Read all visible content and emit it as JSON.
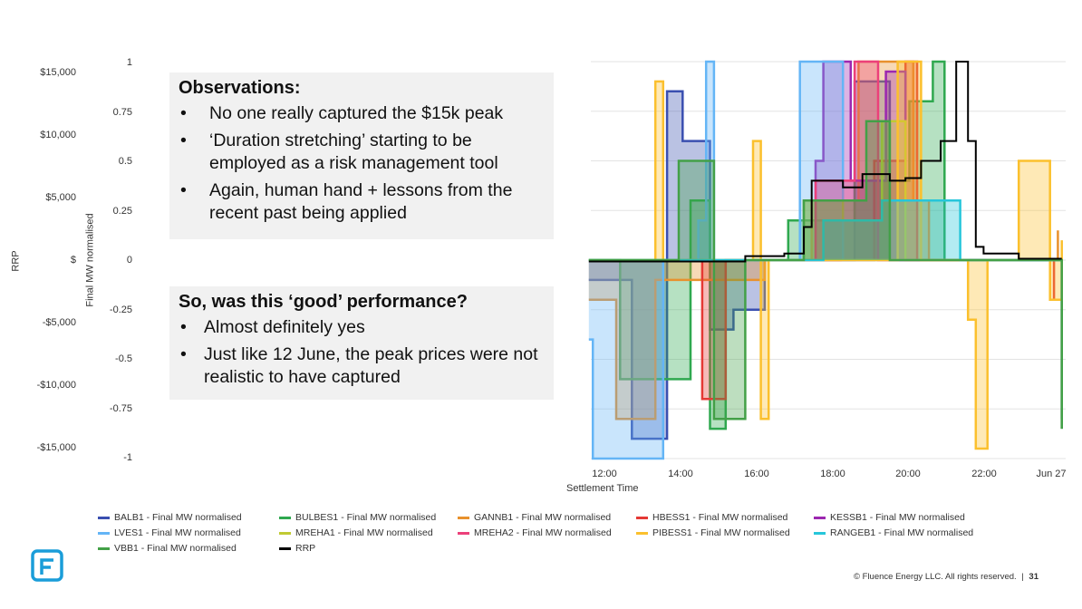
{
  "axes": {
    "rrp_label": "RRP",
    "mw_label": "Final MW normalised",
    "rrp_ticks": [
      "$15,000",
      "$10,000",
      "$5,000",
      "$",
      "-$5,000",
      "-$10,000",
      "-$15,000"
    ],
    "mw_ticks": [
      "1",
      "0.75",
      "0.5",
      "0.25",
      "0",
      "-0.25",
      "-0.5",
      "-0.75",
      "-1"
    ]
  },
  "observations": {
    "heading": "Observations:",
    "bullets": [
      "No one really captured the $15k peak",
      "‘Duration stretching’ starting to be employed as a risk management tool",
      "Again, human hand + lessons from the recent past being applied"
    ]
  },
  "question": {
    "heading": "So, was this ‘good’ performance?",
    "bullets": [
      "Almost definitely yes",
      "Just like 12 June, the peak prices were not realistic to have captured"
    ]
  },
  "chart_data": {
    "type": "line",
    "xlabel": "Settlement Time",
    "x_ticks": [
      "12:00",
      "14:00",
      "16:00",
      "18:00",
      "20:00",
      "22:00",
      "Jun 27"
    ],
    "ylim_left_mw": [
      -1,
      1
    ],
    "ylim_rrp": [
      -15000,
      15000
    ],
    "grid": true,
    "legend_position": "bottom",
    "series": [
      {
        "name": "BALB1 - Final MW normalised",
        "color": "#3a4fb0",
        "points": [
          [
            11.5,
            -0.1
          ],
          [
            12.6,
            -0.9
          ],
          [
            13.5,
            0.85
          ],
          [
            13.9,
            0.6
          ],
          [
            14.6,
            -0.35
          ],
          [
            15.2,
            -0.25
          ],
          [
            16,
            0
          ],
          [
            18.2,
            0
          ],
          [
            18.3,
            0.9
          ],
          [
            19,
            0.9
          ],
          [
            19.2,
            0
          ],
          [
            22,
            0
          ],
          [
            23.6,
            -0.8
          ]
        ]
      },
      {
        "name": "BULBES1 - Final MW normalised",
        "color": "#2fa84f",
        "points": [
          [
            11.5,
            0
          ],
          [
            12.3,
            -0.6
          ],
          [
            14.1,
            0.3
          ],
          [
            14.6,
            -0.85
          ],
          [
            15,
            0
          ],
          [
            16.6,
            0.2
          ],
          [
            17,
            0.2
          ],
          [
            18.3,
            0.4
          ],
          [
            19.7,
            0.8
          ],
          [
            20.3,
            1
          ],
          [
            20.6,
            0
          ],
          [
            22,
            0
          ],
          [
            23.6,
            -0.85
          ]
        ]
      },
      {
        "name": "GANNB1 - Final MW normalised",
        "color": "#e8912d",
        "points": [
          [
            11.5,
            -0.2
          ],
          [
            12.2,
            -0.8
          ],
          [
            13.2,
            -0.1
          ],
          [
            16,
            0
          ],
          [
            17.2,
            0.3
          ],
          [
            18.4,
            1
          ],
          [
            19.5,
            1
          ],
          [
            19.8,
            0.3
          ],
          [
            20.2,
            0
          ],
          [
            22,
            0
          ],
          [
            23.5,
            0.15
          ]
        ]
      },
      {
        "name": "HBESS1 - Final MW normalised",
        "color": "#e53935",
        "points": [
          [
            14,
            0
          ],
          [
            14.4,
            -0.7
          ],
          [
            15,
            0
          ],
          [
            18,
            0
          ],
          [
            18.8,
            0.5
          ],
          [
            19.6,
            1
          ],
          [
            19.9,
            0
          ],
          [
            21,
            0
          ],
          [
            23.4,
            -0.2
          ]
        ]
      },
      {
        "name": "KESSB1 - Final MW normalised",
        "color": "#9c27b0",
        "points": [
          [
            17,
            0
          ],
          [
            17.3,
            0.5
          ],
          [
            17.5,
            1
          ],
          [
            18.1,
            1
          ],
          [
            18.2,
            0.4
          ],
          [
            19.1,
            0.95
          ],
          [
            19.4,
            0.95
          ],
          [
            19.6,
            0
          ],
          [
            21,
            0
          ]
        ]
      },
      {
        "name": "LVES1 - Final MW normalised",
        "color": "#64b5f6",
        "points": [
          [
            11.5,
            -0.4
          ],
          [
            11.6,
            -1
          ],
          [
            13.3,
            -1
          ],
          [
            13.4,
            0
          ],
          [
            14.3,
            0.2
          ],
          [
            14.5,
            1
          ],
          [
            14.6,
            1
          ],
          [
            14.7,
            0
          ],
          [
            16.8,
            0
          ],
          [
            16.9,
            1
          ],
          [
            17.9,
            1
          ],
          [
            18,
            0
          ],
          [
            23.6,
            0
          ]
        ]
      },
      {
        "name": "MREHA1 - Final MW normalised",
        "color": "#c0ca33",
        "points": [
          [
            16,
            0
          ],
          [
            17,
            0.3
          ],
          [
            18,
            0.2
          ],
          [
            19,
            0.7
          ],
          [
            19.6,
            0
          ],
          [
            22,
            0
          ]
        ]
      },
      {
        "name": "MREHA2 - Final MW normalised",
        "color": "#ec407a",
        "points": [
          [
            16,
            0
          ],
          [
            17.3,
            0.4
          ],
          [
            18.3,
            1
          ],
          [
            18.7,
            1
          ],
          [
            18.9,
            0
          ],
          [
            22,
            0
          ]
        ]
      },
      {
        "name": "PIBESS1 - Final MW normalised",
        "color": "#fbc02d",
        "points": [
          [
            11.5,
            0
          ],
          [
            13.2,
            0.9
          ],
          [
            13.4,
            0
          ],
          [
            15.7,
            0.6
          ],
          [
            15.9,
            -0.8
          ],
          [
            16.1,
            0
          ],
          [
            19.4,
            1
          ],
          [
            19.8,
            1
          ],
          [
            20,
            0
          ],
          [
            21.2,
            -0.3
          ],
          [
            21.4,
            -0.95
          ],
          [
            21.7,
            0
          ],
          [
            22.5,
            0.5
          ],
          [
            23.3,
            -0.2
          ],
          [
            23.6,
            0.1
          ]
        ]
      },
      {
        "name": "RANGEB1 - Final MW normalised",
        "color": "#26c6da",
        "points": [
          [
            11.5,
            0
          ],
          [
            16,
            0
          ],
          [
            17.5,
            0.2
          ],
          [
            19,
            0.3
          ],
          [
            20.5,
            0.3
          ],
          [
            21,
            0
          ],
          [
            23.6,
            0
          ]
        ]
      },
      {
        "name": "VBB1 - Final MW normalised",
        "color": "#43a047",
        "points": [
          [
            11.5,
            0
          ],
          [
            13.8,
            0.5
          ],
          [
            14.7,
            -0.8
          ],
          [
            15.5,
            0
          ],
          [
            17,
            0.3
          ],
          [
            18.6,
            0.7
          ],
          [
            19.2,
            0
          ],
          [
            22,
            0
          ],
          [
            23.6,
            -0.85
          ]
        ]
      },
      {
        "name": "RRP",
        "color": "#000000",
        "points": [
          [
            11.5,
            -100
          ],
          [
            14,
            -100
          ],
          [
            15.5,
            300
          ],
          [
            16.5,
            500
          ],
          [
            17,
            2500
          ],
          [
            17.2,
            6000
          ],
          [
            18,
            5500
          ],
          [
            18.5,
            6500
          ],
          [
            19.2,
            6000
          ],
          [
            19.6,
            6200
          ],
          [
            20,
            7500
          ],
          [
            20.5,
            9000
          ],
          [
            20.9,
            15000
          ],
          [
            21.2,
            9000
          ],
          [
            21.4,
            1000
          ],
          [
            21.6,
            500
          ],
          [
            22.5,
            100
          ],
          [
            23.6,
            100
          ]
        ]
      }
    ]
  },
  "footer": {
    "copyright": "© Fluence Energy LLC. All rights reserved.",
    "separator": "|",
    "page_number": "31"
  },
  "logo": {
    "name": "fluence-logo",
    "color": "#1a9dd9"
  }
}
